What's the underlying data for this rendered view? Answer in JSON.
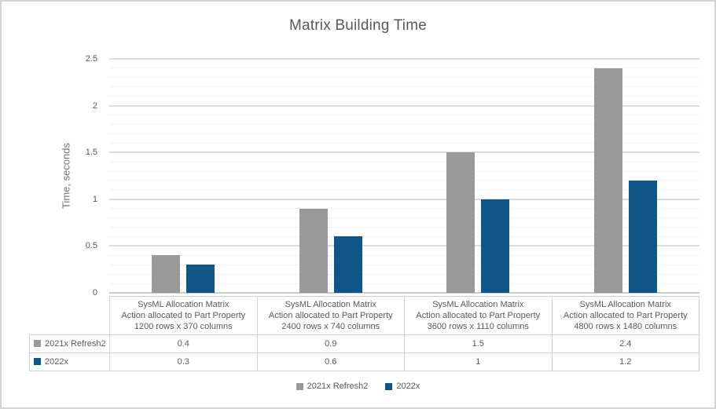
{
  "chart_data": {
    "type": "bar",
    "title": "Matrix Building Time",
    "xlabel": "",
    "ylabel": "Time, seconds",
    "ylim": [
      0,
      2.5
    ],
    "ytick_interval": 0.5,
    "minor_gridline_interval": 0.1,
    "grid": true,
    "legend_position": "bottom",
    "yticks": [
      "0",
      "0.5",
      "1",
      "1.5",
      "2",
      "2.5"
    ],
    "categories": [
      [
        "SysML Allocation Matrix",
        "Action allocated to Part Property",
        "1200 rows x 370 columns"
      ],
      [
        "SysML Allocation Matrix",
        "Action allocated to Part Property",
        "2400 rows x 740 columns"
      ],
      [
        "SysML Allocation Matrix",
        "Action allocated to Part Property",
        "3600 rows x 1110 columns"
      ],
      [
        "SysML Allocation Matrix",
        "Action allocated to Part Property",
        "4800 rows x 1480 columns"
      ]
    ],
    "series": [
      {
        "name": "2021x Refresh2",
        "color": "#999999",
        "values": [
          0.4,
          0.9,
          1.5,
          2.4
        ],
        "display_values": [
          "0.4",
          "0.9",
          "1.5",
          "2.4"
        ]
      },
      {
        "name": "2022x",
        "color": "#0f5587",
        "values": [
          0.3,
          0.6,
          1,
          1.2
        ],
        "display_values": [
          "0.3",
          "0.6",
          "1",
          "1.2"
        ]
      }
    ],
    "data_table_shown": true
  },
  "colors": {
    "series_gray": "#999999",
    "series_blue": "#0f5587",
    "text": "#595959",
    "major_gridline": "#dcdcdc",
    "minor_gridline": "#f1f1f1",
    "table_border": "#d2d2d2",
    "frame_border": "#d5d5d5"
  }
}
